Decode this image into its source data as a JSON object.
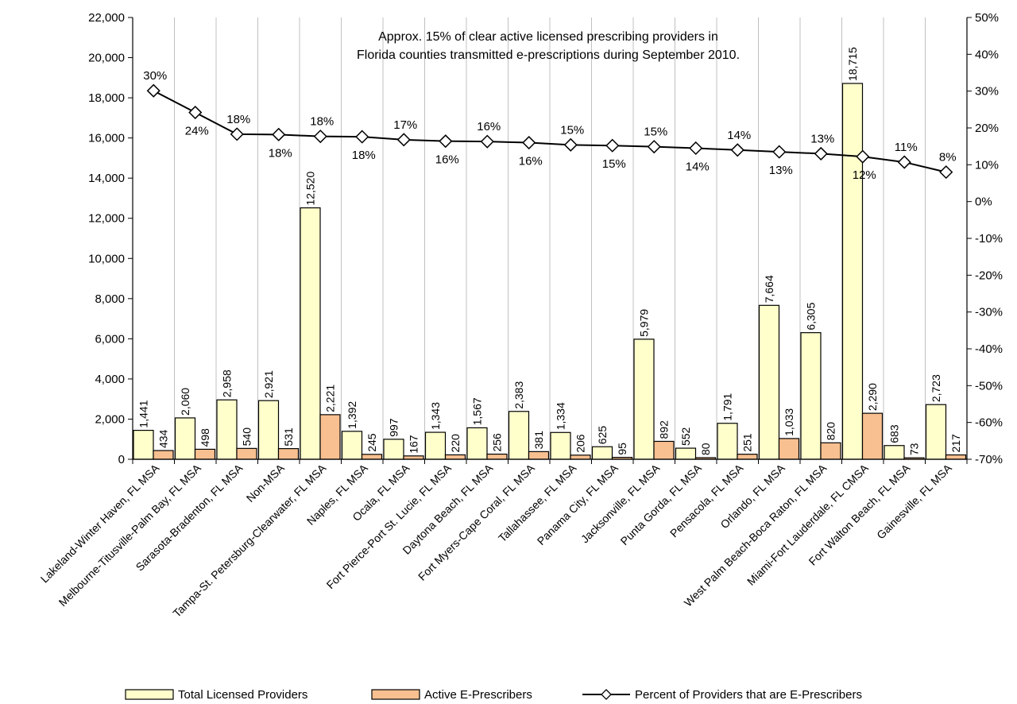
{
  "chart_data": {
    "type": "bar",
    "title": "",
    "annotation": [
      "Approx. 15% of clear active licensed prescribing providers  in",
      "Florida counties transmitted e-prescriptions during September 2010."
    ],
    "categories": [
      "Lakeland-Winter Haven, FL MSA",
      "Melbourne-Titusville-Palm Bay, FL MSA",
      "Sarasota-Bradenton, FL MSA",
      "Non-MSA",
      "Tampa-St. Petersburg-Clearwater, FL MSA",
      "Naples, FL MSA",
      "Ocala, FL MSA",
      "Fort Pierce-Port St. Lucie, FL MSA",
      "Daytona Beach, FL MSA",
      "Fort Myers-Cape Coral, FL MSA",
      "Tallahassee, FL MSA",
      "Panama City, FL MSA",
      "Jacksonville, FL MSA",
      "Punta Gorda, FL MSA",
      "Pensacola, FL MSA",
      "Orlando, FL MSA",
      "West Palm Beach-Boca Raton, FL MSA",
      "Miami-Fort Lauderdale, FL CMSA",
      "Fort Walton Beach, FL MSA",
      "Gainesville, FL MSA"
    ],
    "series": [
      {
        "name": "Total Licensed Providers",
        "axis": "left",
        "color": "#FFFFCC",
        "values": [
          1441,
          2060,
          2958,
          2921,
          12520,
          1392,
          997,
          1343,
          1567,
          2383,
          1334,
          625,
          5979,
          552,
          1791,
          7664,
          6305,
          18715,
          683,
          2723
        ],
        "labels": [
          "1,441",
          "2,060",
          "2,958",
          "2,921",
          "12,520",
          "1,392",
          "997",
          "1,343",
          "1,567",
          "2,383",
          "1,334",
          "625",
          "5,979",
          "552",
          "1,791",
          "7,664",
          "6,305",
          "18,715",
          "683",
          "2,723"
        ]
      },
      {
        "name": "Active E-Prescribers",
        "axis": "left",
        "color": "#F8C090",
        "values": [
          434,
          498,
          540,
          531,
          2221,
          245,
          167,
          220,
          256,
          381,
          206,
          95,
          892,
          80,
          251,
          1033,
          820,
          2290,
          73,
          217
        ],
        "labels": [
          "434",
          "498",
          "540",
          "531",
          "2,221",
          "245",
          "167",
          "220",
          "256",
          "381",
          "206",
          "95",
          "892",
          "80",
          "251",
          "1,033",
          "820",
          "2,290",
          "73",
          "217"
        ]
      },
      {
        "name": "Percent of Providers that are E-Prescribers",
        "axis": "right",
        "type": "line",
        "values": [
          30.1,
          24.2,
          18.3,
          18.2,
          17.7,
          17.6,
          16.8,
          16.4,
          16.3,
          16.0,
          15.4,
          15.2,
          14.9,
          14.5,
          14.0,
          13.5,
          13.0,
          12.2,
          10.7,
          8.0
        ],
        "labels": [
          "30%",
          "24%",
          "18%",
          "18%",
          "18%",
          "18%",
          "17%",
          "16%",
          "16%",
          "16%",
          "15%",
          "15%",
          "15%",
          "14%",
          "14%",
          "13%",
          "13%",
          "12%",
          "11%",
          "8%"
        ]
      }
    ],
    "ylim": [
      0,
      22000
    ],
    "y_ticks": [
      "0",
      "2,000",
      "4,000",
      "6,000",
      "8,000",
      "10,000",
      "12,000",
      "14,000",
      "16,000",
      "18,000",
      "20,000",
      "22,000"
    ],
    "y2lim": [
      -70,
      50
    ],
    "y2_ticks": [
      "-70%",
      "-60%",
      "-50%",
      "-40%",
      "-30%",
      "-20%",
      "-10%",
      "0%",
      "10%",
      "20%",
      "30%",
      "40%",
      "50%"
    ],
    "grid": "vertical-category",
    "legend": "bottom"
  }
}
